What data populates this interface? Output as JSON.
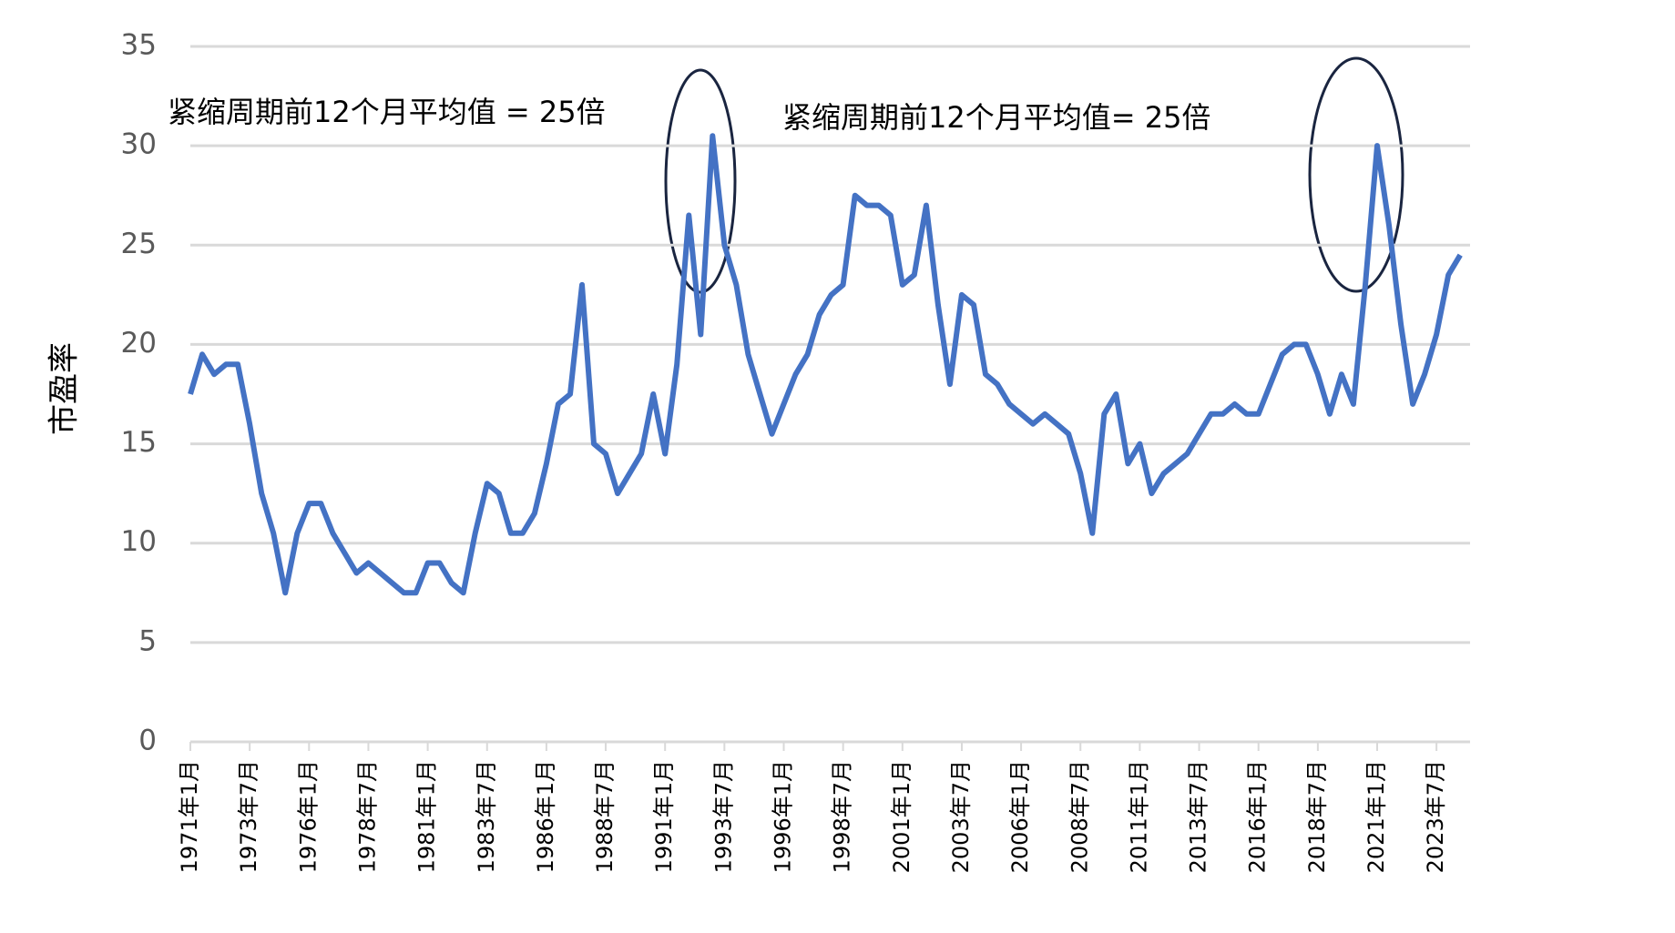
{
  "chart_data": {
    "type": "line",
    "y_label": "市盈率",
    "annotations": [
      "紧缩周期前12个月平均值 = 25倍",
      "紧缩周期前12个月平均值= 25倍"
    ],
    "categories": [
      "1971年1月",
      null,
      null,
      null,
      null,
      "1973年7月",
      null,
      null,
      null,
      null,
      "1976年1月",
      null,
      null,
      null,
      null,
      "1978年7月",
      null,
      null,
      null,
      null,
      "1981年1月",
      null,
      null,
      null,
      null,
      "1983年7月",
      null,
      null,
      null,
      null,
      "1986年1月",
      null,
      null,
      null,
      null,
      "1988年7月",
      null,
      null,
      null,
      null,
      "1991年1月",
      null,
      null,
      null,
      null,
      "1993年7月",
      null,
      null,
      null,
      null,
      "1996年1月",
      null,
      null,
      null,
      null,
      "1998年7月",
      null,
      null,
      null,
      null,
      "2001年1月",
      null,
      null,
      null,
      null,
      "2003年7月",
      null,
      null,
      null,
      null,
      "2006年1月",
      null,
      null,
      null,
      null,
      "2008年7月",
      null,
      null,
      null,
      null,
      "2011年1月",
      null,
      null,
      null,
      null,
      "2013年7月",
      null,
      null,
      null,
      null,
      "2016年1月",
      null,
      null,
      null,
      null,
      "2018年7月",
      null,
      null,
      null,
      null,
      "2021年1月",
      null,
      null,
      null,
      null,
      "2023年7月",
      null,
      null
    ],
    "series": [
      {
        "name": "市盈率",
        "color": "#4472c4",
        "values": [
          17.5,
          19.5,
          18.5,
          19,
          19,
          16,
          12.5,
          10.5,
          7.5,
          10.5,
          12,
          12,
          10.5,
          9.5,
          8.5,
          9,
          8.5,
          8,
          7.5,
          7.5,
          9,
          9,
          8,
          7.5,
          10.5,
          13,
          12.5,
          10.5,
          10.5,
          11.5,
          14,
          17,
          17.5,
          23,
          15,
          14.5,
          12.5,
          13.5,
          14.5,
          17.5,
          14.5,
          19,
          26.5,
          20.5,
          30.5,
          25,
          23,
          19.5,
          17.5,
          15.5,
          17,
          18.5,
          19.5,
          21.5,
          22.5,
          23,
          27.5,
          27,
          27,
          26.5,
          23,
          23.5,
          27,
          22,
          18,
          22.5,
          22,
          18.5,
          18,
          17,
          16.5,
          16,
          16.5,
          16,
          15.5,
          13.5,
          10.5,
          16.5,
          17.5,
          14,
          15,
          12.5,
          13.5,
          14,
          14.5,
          15.5,
          16.5,
          16.5,
          17,
          16.5,
          16.5,
          18,
          19.5,
          20,
          20,
          18.5,
          16.5,
          18.5,
          17,
          23,
          30,
          26,
          21,
          17,
          18.5,
          20.5,
          23.5,
          24.5
        ]
      }
    ],
    "ylim": [
      0,
      35
    ],
    "yticks": [
      0,
      5,
      10,
      15,
      20,
      25,
      30,
      35
    ],
    "grid": true
  }
}
